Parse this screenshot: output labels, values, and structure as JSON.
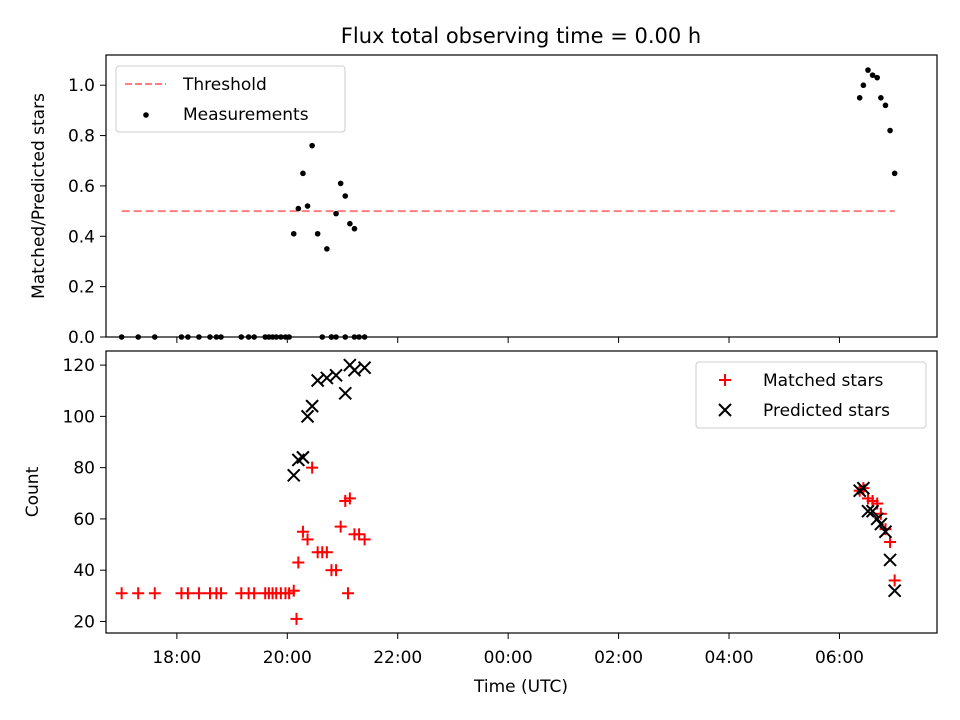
{
  "figure": {
    "title": "Flux total observing time = 0.00 h",
    "xlabel": "Time (UTC)"
  },
  "colors": {
    "threshold": "#ff7f7f",
    "measurements": "#000000",
    "matched": "#ff0000",
    "predicted": "#000000",
    "axes": "#000000"
  },
  "chart_data": [
    {
      "type": "scatter",
      "panel": "top",
      "ylabel": "Matched/Predicted stars",
      "xlim": [
        "16:43",
        "07:46"
      ],
      "ylim": [
        0,
        1.12
      ],
      "yticks": [
        0.0,
        0.2,
        0.4,
        0.6,
        0.8,
        1.0
      ],
      "ytick_labels": [
        "0.0",
        "0.2",
        "0.4",
        "0.6",
        "0.8",
        "1.0"
      ],
      "legend_position": "upper-left",
      "threshold": {
        "name": "Threshold",
        "y": 0.5,
        "x_start": "17:00",
        "x_end": "07:00",
        "style": "dashed"
      },
      "series": [
        {
          "name": "Measurements",
          "marker": "dot",
          "x": [
            "17:00",
            "17:18",
            "17:36",
            "18:05",
            "18:12",
            "18:24",
            "18:36",
            "18:43",
            "18:48",
            "19:10",
            "19:18",
            "19:24",
            "19:36",
            "19:40",
            "19:44",
            "19:48",
            "19:53",
            "19:58",
            "20:02",
            "20:07",
            "20:12",
            "20:17",
            "20:22",
            "20:27",
            "20:33",
            "20:38",
            "20:43",
            "20:48",
            "20:53",
            "20:58",
            "21:03",
            "21:08",
            "21:13",
            "21:18",
            "21:24",
            "20:48",
            "20:53",
            "21:03",
            "21:13"
          ],
          "y": [
            0,
            0,
            0,
            0,
            0,
            0,
            0,
            0,
            0,
            0,
            0,
            0,
            0,
            0,
            0,
            0,
            0,
            0,
            0,
            0.41,
            0.51,
            0.65,
            0.52,
            0.76,
            0.41,
            0,
            0.35,
            0,
            0.49,
            0.61,
            0.56,
            0.45,
            0.43,
            0,
            0,
            0,
            0,
            0,
            0
          ]
        },
        {
          "name": "",
          "marker": "dot",
          "x": [
            "06:22",
            "06:26",
            "06:31",
            "06:36",
            "06:41",
            "06:45",
            "06:50",
            "06:55",
            "07:00"
          ],
          "y": [
            0.95,
            1.0,
            1.06,
            1.04,
            1.03,
            0.95,
            0.92,
            0.82,
            0.65
          ]
        }
      ]
    },
    {
      "type": "scatter",
      "panel": "bottom",
      "ylabel": "Count",
      "xlim": [
        "16:43",
        "07:46"
      ],
      "ylim": [
        15.5,
        125.5
      ],
      "yticks": [
        20,
        40,
        60,
        80,
        100,
        120
      ],
      "ytick_labels": [
        "20",
        "40",
        "60",
        "80",
        "100",
        "120"
      ],
      "xticks": [
        "18:00",
        "20:00",
        "22:00",
        "00:00",
        "02:00",
        "04:00",
        "06:00"
      ],
      "legend_position": "upper-right",
      "series": [
        {
          "name": "Matched stars",
          "marker": "plus",
          "x": [
            "17:00",
            "17:18",
            "17:36",
            "18:05",
            "18:12",
            "18:24",
            "18:36",
            "18:43",
            "18:48",
            "19:10",
            "19:18",
            "19:24",
            "19:36",
            "19:40",
            "19:44",
            "19:48",
            "19:53",
            "19:58",
            "20:02",
            "20:07",
            "20:12",
            "20:17",
            "20:22",
            "20:27",
            "20:33",
            "20:38",
            "20:43",
            "20:48",
            "20:53",
            "20:58",
            "21:03",
            "21:08",
            "21:13",
            "21:18",
            "21:24",
            "06:22",
            "06:26",
            "06:31",
            "06:36",
            "06:41",
            "06:45",
            "06:50",
            "06:55",
            "07:00",
            "20:10",
            "21:06"
          ],
          "y": [
            31,
            31,
            31,
            31,
            31,
            31,
            31,
            31,
            31,
            31,
            31,
            31,
            31,
            31,
            31,
            31,
            31,
            31,
            31,
            32,
            43,
            55,
            52,
            80,
            47,
            47,
            47,
            40,
            40,
            57,
            67,
            68,
            54,
            54,
            52,
            71,
            72,
            68,
            67,
            66,
            62,
            56,
            51,
            36,
            21,
            31
          ]
        },
        {
          "name": "Predicted stars",
          "marker": "x",
          "x": [
            "20:07",
            "20:12",
            "20:17",
            "20:22",
            "20:27",
            "20:33",
            "20:43",
            "20:53",
            "21:03",
            "21:08",
            "21:13",
            "21:24",
            "06:22",
            "06:26",
            "06:31",
            "06:36",
            "06:41",
            "06:45",
            "06:50",
            "06:55",
            "07:00"
          ],
          "y": [
            77,
            83,
            84,
            100,
            104,
            114,
            115,
            116,
            109,
            120,
            118,
            119,
            71,
            72,
            63,
            63,
            60,
            58,
            55,
            44,
            32
          ]
        }
      ]
    }
  ]
}
